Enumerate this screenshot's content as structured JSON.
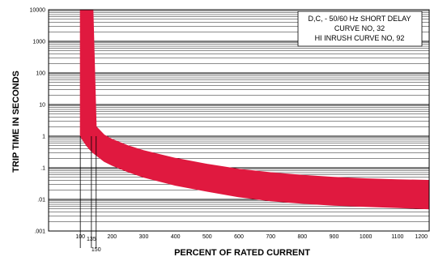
{
  "chart_data": {
    "type": "area",
    "title": "",
    "xlabel": "PERCENT OF RATED CURRENT",
    "ylabel": "TRIP TIME IN SECONDS",
    "x_scale": "linear",
    "y_scale": "log",
    "xlim": [
      0,
      1200
    ],
    "ylim": [
      0.001,
      10000
    ],
    "x_ticks": [
      "100",
      "200",
      "300",
      "400",
      "500",
      "600",
      "700",
      "800",
      "900",
      "1000",
      "1100",
      "1200"
    ],
    "x_ticks_values": [
      100,
      200,
      300,
      400,
      500,
      600,
      700,
      800,
      900,
      1000,
      1100,
      1200
    ],
    "x_extra_ticks": [
      "135",
      "150"
    ],
    "x_extra_ticks_values": [
      135,
      150
    ],
    "y_ticks": [
      ".001",
      ".01",
      ".1",
      "1",
      "10",
      "100",
      "1000",
      "10000"
    ],
    "y_ticks_values": [
      0.001,
      0.01,
      0.1,
      1,
      10,
      100,
      1000,
      10000
    ],
    "grid": true,
    "band_color": "#e0193f",
    "annotation": [
      "D,C, - 50/60 Hz SHORT DELAY",
      "CURVE NO, 32",
      "HI INRUSH CURVE NO, 92"
    ],
    "series": [
      {
        "name": "",
        "x": [
          100,
          110,
          120,
          130,
          140,
          150,
          175,
          200,
          250,
          300,
          400,
          500,
          600,
          700,
          800,
          900,
          1000,
          1100,
          1200
        ],
        "y_min": [
          1.0,
          0.7,
          0.5,
          0.38,
          0.3,
          0.25,
          0.16,
          0.12,
          0.075,
          0.05,
          0.028,
          0.018,
          0.012,
          0.009,
          0.0075,
          0.0065,
          0.006,
          0.0055,
          0.005
        ],
        "y_max": [
          10000,
          10000,
          10000,
          10000,
          10000,
          2.0,
          1.1,
          0.8,
          0.5,
          0.35,
          0.2,
          0.13,
          0.09,
          0.07,
          0.058,
          0.05,
          0.045,
          0.042,
          0.04
        ]
      }
    ]
  }
}
